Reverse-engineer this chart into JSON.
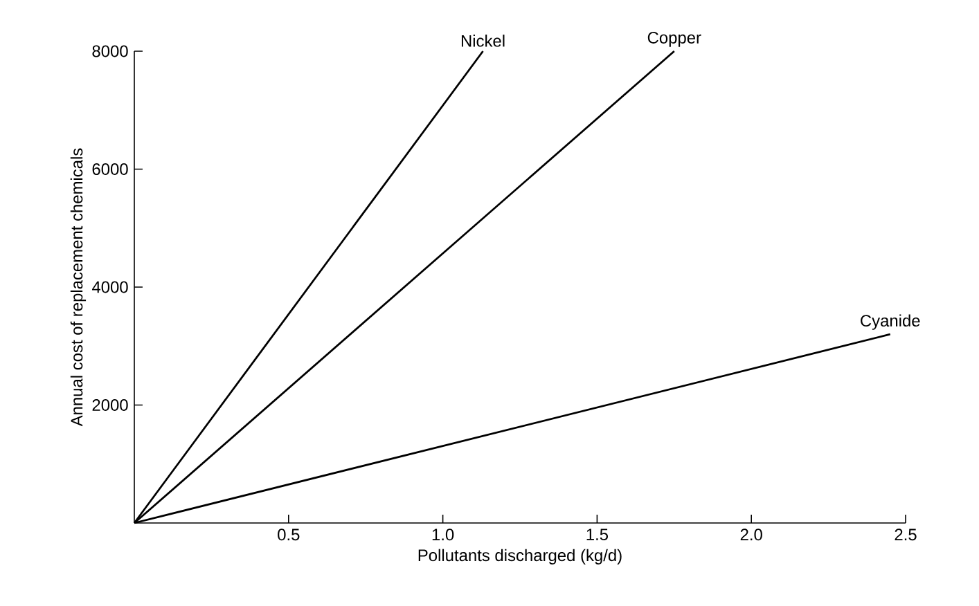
{
  "chart_data": {
    "type": "line",
    "xlabel": "Pollutants discharged (kg/d)",
    "ylabel": "Annual cost of replacement chemicals",
    "xlim": [
      0,
      2.5
    ],
    "ylim": [
      0,
      8000
    ],
    "xticks": [
      0.5,
      {
        "value": 1,
        "label": "1.0"
      },
      1.5,
      {
        "value": 2,
        "label": "2.0"
      },
      2.5
    ],
    "yticks": [
      2000,
      4000,
      6000,
      8000
    ],
    "series": [
      {
        "name": "Nickel",
        "color": "#000000",
        "x": [
          0,
          1.13
        ],
        "values": [
          0,
          8000
        ]
      },
      {
        "name": "Copper",
        "color": "#000000",
        "x": [
          0,
          1.75
        ],
        "values": [
          0,
          8000
        ]
      },
      {
        "name": "Cyanide",
        "color": "#000000",
        "x": [
          0,
          2.45
        ],
        "values": [
          0,
          3200
        ]
      }
    ],
    "grid": false,
    "legend": false,
    "marker": "none",
    "line_style": "solid"
  }
}
